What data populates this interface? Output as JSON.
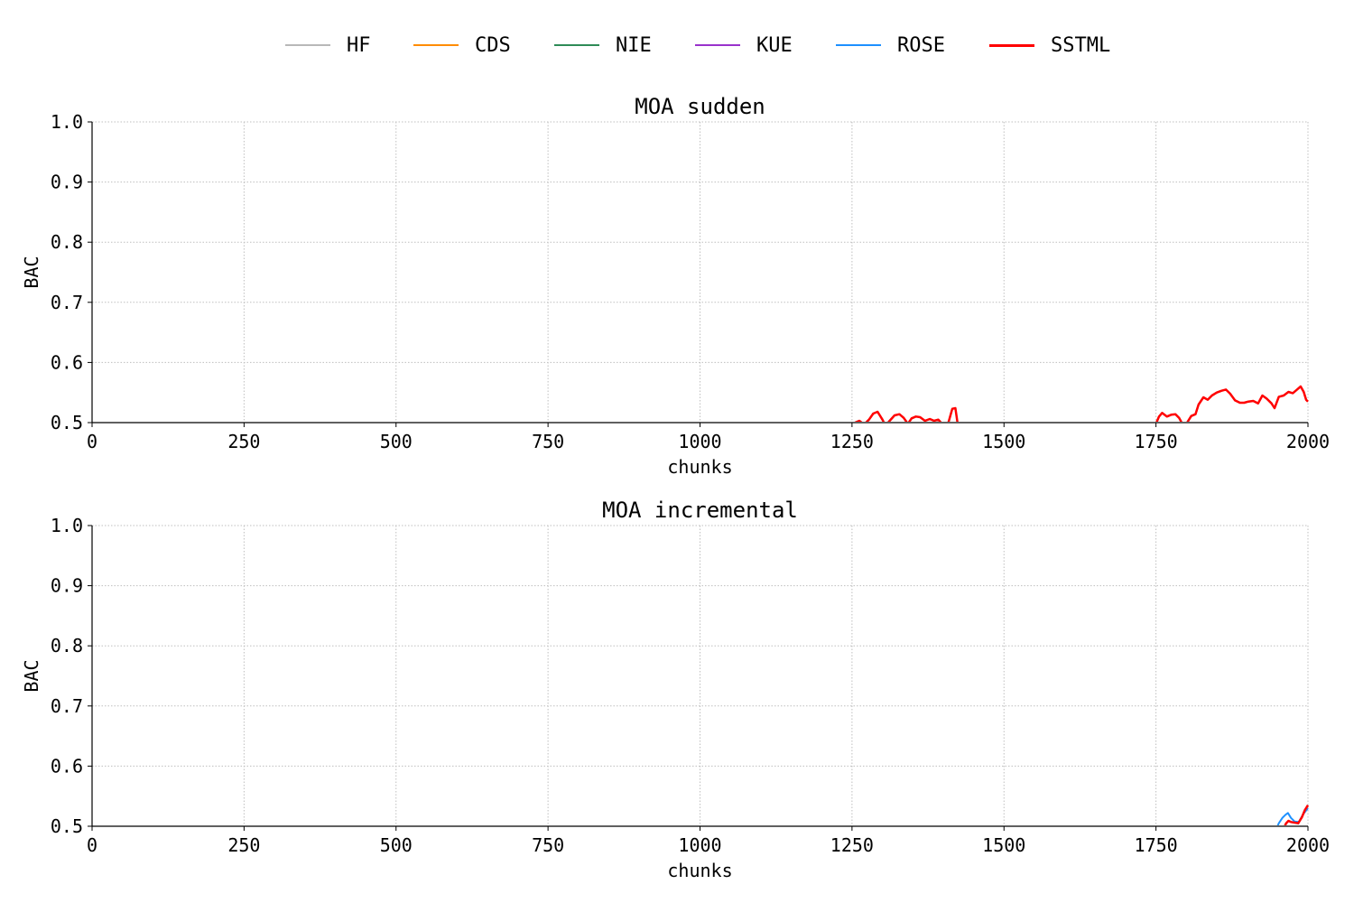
{
  "legend": [
    {
      "name": "HF",
      "color": "#b8b8b8"
    },
    {
      "name": "CDS",
      "color": "#ff8c00"
    },
    {
      "name": "NIE",
      "color": "#2e8b57"
    },
    {
      "name": "KUE",
      "color": "#9932cc"
    },
    {
      "name": "ROSE",
      "color": "#1e90ff"
    },
    {
      "name": "SSTML",
      "color": "#ff0000"
    }
  ],
  "chart_data": [
    {
      "type": "line",
      "title": "MOA sudden",
      "xlabel": "chunks",
      "ylabel": "BAC",
      "xlim": [
        0,
        2000
      ],
      "ylim": [
        0.5,
        1.0
      ],
      "xticks": [
        "0",
        "250",
        "500",
        "750",
        "1000",
        "1250",
        "1500",
        "1750",
        "2000"
      ],
      "yticks": [
        "0.5",
        "0.6",
        "0.7",
        "0.8",
        "0.9",
        "1.0"
      ],
      "grid": true,
      "series": [
        {
          "name": "SSTML",
          "color": "#ff0000",
          "x": [
            1255,
            1262,
            1270,
            1278,
            1285,
            1292,
            1300,
            1305,
            1312,
            1320,
            1328,
            1335,
            1342,
            1348,
            1355,
            1362,
            1370,
            1378,
            1385,
            1392,
            1400,
            1405,
            1410,
            1415,
            1420,
            1425
          ],
          "y": [
            0.5,
            0.503,
            0.497,
            0.505,
            0.515,
            0.518,
            0.505,
            0.495,
            0.503,
            0.512,
            0.514,
            0.508,
            0.498,
            0.507,
            0.51,
            0.509,
            0.503,
            0.506,
            0.503,
            0.505,
            0.496,
            0.488,
            0.505,
            0.523,
            0.524,
            0.49
          ]
        },
        {
          "name": "SSTML",
          "color": "#ff0000",
          "x": [
            1750,
            1755,
            1760,
            1768,
            1775,
            1782,
            1788,
            1795,
            1800,
            1808,
            1815,
            1820,
            1828,
            1835,
            1842,
            1850,
            1858,
            1865,
            1872,
            1880,
            1888,
            1895,
            1902,
            1910,
            1918,
            1925,
            1932,
            1940,
            1945,
            1952,
            1960,
            1968,
            1975,
            1982,
            1988,
            1993,
            1997,
            2000
          ],
          "y": [
            0.498,
            0.51,
            0.516,
            0.51,
            0.513,
            0.514,
            0.508,
            0.495,
            0.498,
            0.511,
            0.514,
            0.53,
            0.542,
            0.538,
            0.545,
            0.55,
            0.553,
            0.555,
            0.548,
            0.537,
            0.533,
            0.533,
            0.535,
            0.536,
            0.532,
            0.545,
            0.54,
            0.532,
            0.524,
            0.543,
            0.545,
            0.551,
            0.549,
            0.555,
            0.56,
            0.551,
            0.538,
            0.535
          ]
        }
      ]
    },
    {
      "type": "line",
      "title": "MOA incremental",
      "xlabel": "chunks",
      "ylabel": "BAC",
      "xlim": [
        0,
        2000
      ],
      "ylim": [
        0.5,
        1.0
      ],
      "xticks": [
        "0",
        "250",
        "500",
        "750",
        "1000",
        "1250",
        "1500",
        "1750",
        "2000"
      ],
      "yticks": [
        "0.5",
        "0.6",
        "0.7",
        "0.8",
        "0.9",
        "1.0"
      ],
      "grid": true,
      "series": [
        {
          "name": "ROSE",
          "color": "#1e90ff",
          "x": [
            1948,
            1952,
            1958,
            1963,
            1967,
            1972,
            1978,
            1985,
            1992,
            2000
          ],
          "y": [
            0.496,
            0.505,
            0.514,
            0.519,
            0.522,
            0.514,
            0.508,
            0.507,
            0.52,
            0.53
          ]
        },
        {
          "name": "SSTML",
          "color": "#ff0000",
          "x": [
            1960,
            1964,
            1968,
            1972,
            1978,
            1984,
            1990,
            1995,
            2000
          ],
          "y": [
            0.496,
            0.505,
            0.509,
            0.507,
            0.506,
            0.505,
            0.515,
            0.527,
            0.535
          ]
        }
      ]
    }
  ]
}
